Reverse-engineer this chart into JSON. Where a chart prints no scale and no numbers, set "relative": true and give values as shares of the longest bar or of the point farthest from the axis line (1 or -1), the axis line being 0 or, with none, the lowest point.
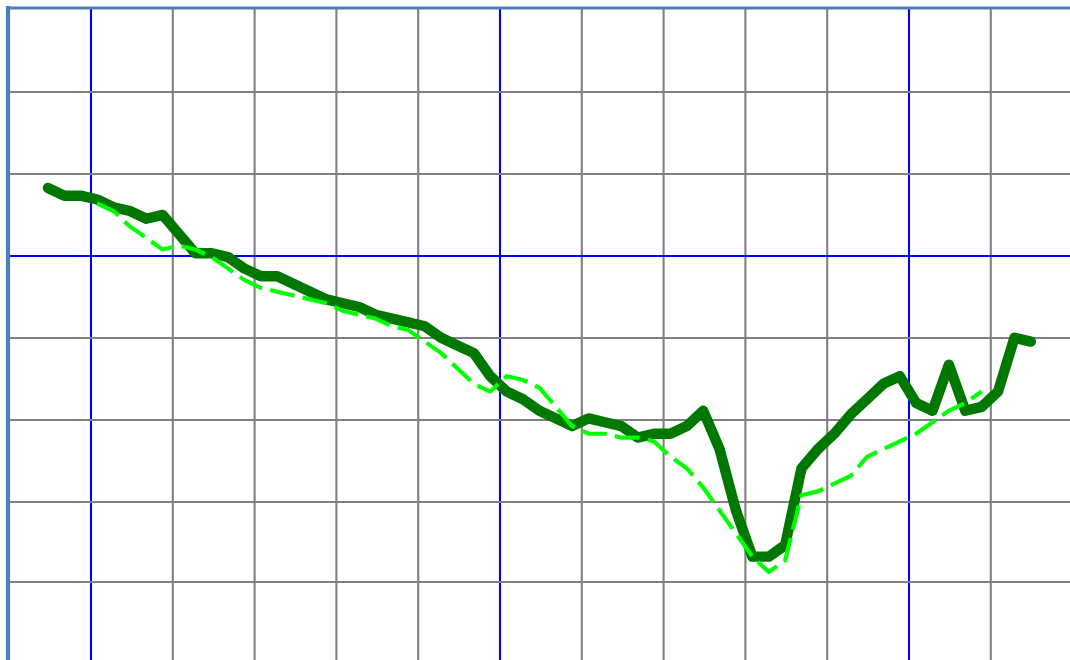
{
  "chart_data": {
    "type": "line",
    "relative": true,
    "grid": true,
    "legend": false,
    "marker": "none",
    "categories": [
      null,
      null,
      null,
      null,
      null,
      null,
      null,
      null,
      null,
      null,
      null,
      null,
      null,
      null,
      null,
      null,
      null,
      null,
      null,
      null,
      null,
      null,
      null,
      null,
      null,
      null,
      null,
      null,
      null,
      null,
      null,
      null,
      null,
      null,
      null,
      null,
      null,
      null,
      null,
      null,
      null,
      null,
      null,
      null,
      null,
      null,
      null,
      null,
      null,
      null,
      null,
      null,
      null,
      null,
      null,
      null,
      null,
      null,
      null,
      null,
      null
    ],
    "series": [
      {
        "color": "#007800",
        "line_style": "solid",
        "values": [
          1.0,
          0.98,
          0.98,
          0.97,
          0.95,
          0.94,
          0.92,
          0.93,
          0.88,
          0.83,
          0.83,
          0.82,
          0.79,
          0.77,
          0.77,
          0.75,
          0.73,
          0.71,
          0.7,
          0.69,
          0.67,
          0.66,
          0.65,
          0.64,
          0.61,
          0.59,
          0.57,
          0.51,
          0.47,
          0.45,
          0.42,
          0.4,
          0.38,
          0.4,
          0.39,
          0.38,
          0.35,
          0.36,
          0.36,
          0.38,
          0.42,
          0.32,
          0.16,
          0.04,
          0.04,
          0.07,
          0.27,
          0.32,
          0.36,
          0.41,
          0.45,
          0.49,
          0.51,
          0.44,
          0.42,
          0.54,
          0.42,
          0.43,
          0.47,
          0.61,
          0.6
        ]
      },
      {
        "color": "#00ff00",
        "line_style": "dashed",
        "values": [
          null,
          null,
          null,
          0.96,
          0.94,
          0.9,
          0.87,
          0.84,
          0.85,
          0.84,
          0.82,
          0.79,
          0.76,
          0.74,
          0.73,
          0.72,
          0.71,
          0.7,
          0.68,
          0.67,
          0.66,
          0.64,
          0.63,
          0.6,
          0.57,
          0.53,
          0.49,
          0.47,
          0.51,
          0.5,
          0.48,
          0.43,
          0.38,
          0.36,
          0.36,
          0.35,
          0.35,
          0.34,
          0.3,
          0.27,
          0.22,
          0.16,
          0.1,
          0.04,
          0.0,
          0.03,
          0.2,
          0.21,
          0.23,
          0.25,
          0.3,
          0.32,
          0.34,
          0.36,
          0.39,
          0.42,
          0.44,
          0.47,
          null,
          null,
          null
        ]
      }
    ]
  }
}
